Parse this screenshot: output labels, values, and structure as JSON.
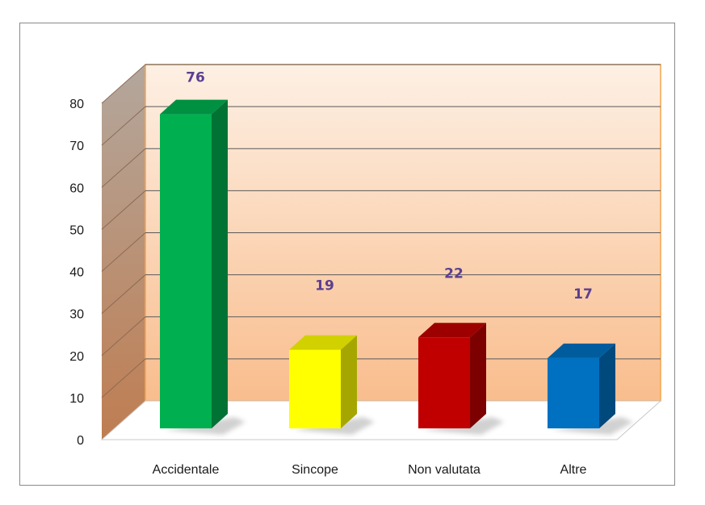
{
  "chart_data": {
    "type": "bar",
    "categories": [
      "Accidentale",
      "Sincope",
      "Non valutata",
      "Altre"
    ],
    "values": [
      76,
      19,
      22,
      17
    ],
    "data_labels": [
      "76",
      "19",
      "22",
      "17"
    ],
    "ylim": [
      0,
      80
    ],
    "yticks": [
      "0",
      "10",
      "20",
      "30",
      "40",
      "50",
      "60",
      "70",
      "80"
    ],
    "title": "",
    "xlabel": "",
    "ylabel": "",
    "grid": true,
    "legend": "none",
    "style": "3d-column",
    "colors": {
      "bars": [
        "#00b050",
        "#ffff00",
        "#c00000",
        "#0070c0"
      ],
      "data_label": "#5b3f91",
      "gridline": "#5a5a5a",
      "back_wall_top": "#fdf0e4",
      "back_wall_bottom": "#f9bd8d",
      "side_wall_top": "#b3a79d",
      "side_wall_bottom": "#bf7d51",
      "wall_edge": "#f5a44f"
    }
  }
}
